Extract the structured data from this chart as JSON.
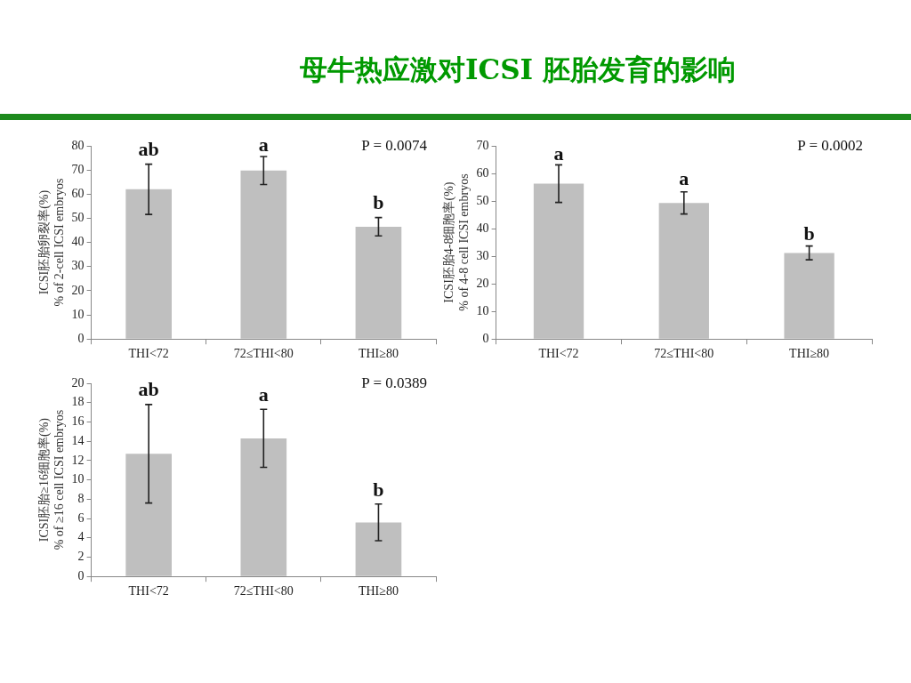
{
  "chart_data": [
    {
      "type": "bar",
      "title": "母牛热应激对ICSI 胚胎发育的影响",
      "ylabel": "ICSI胚胎卵裂率(%)\n% of 2-cell ICSI embryos",
      "categories": [
        "THI<72",
        "72≤THI<80",
        "THI≥80"
      ],
      "values": [
        62,
        69.8,
        46.5
      ],
      "errors": [
        10.4,
        5.8,
        3.8
      ],
      "color": "#bfbfbf",
      "ylim": [
        0,
        80
      ],
      "yticks": [
        0,
        10,
        20,
        30,
        40,
        50,
        60,
        70,
        80
      ],
      "annotations": [
        {
          "text": "ab",
          "x": "THI<72",
          "y": 74
        },
        {
          "text": "a",
          "x": "72≤THI<80",
          "y": 76
        },
        {
          "text": "b",
          "x": "THI≥80",
          "y": 52
        },
        "P = 0.0074"
      ]
    },
    {
      "type": "bar",
      "ylabel": "ICSI胚胎4-8细胞率(%)\n% of 4-8 cell ICSI embryos",
      "categories": [
        "THI<72",
        "72≤THI<80",
        "THI≥80"
      ],
      "values": [
        56.3,
        49.3,
        31.2
      ],
      "errors": [
        6.8,
        4,
        2.5
      ],
      "color": "#bfbfbf",
      "ylim": [
        0,
        70
      ],
      "yticks": [
        0,
        10,
        20,
        30,
        40,
        50,
        60,
        70
      ],
      "annotations": [
        {
          "text": "a",
          "x": "THI<72",
          "y": 63
        },
        {
          "text": "a",
          "x": "72≤THI<80",
          "y": 54
        },
        {
          "text": "b",
          "x": "THI≥80",
          "y": 34
        },
        "P = 0.0002"
      ]
    },
    {
      "type": "bar",
      "ylabel": "ICSI胚胎≥16细胞率(%)\n% of ≥16 cell ICSI embryos",
      "categories": [
        "THI<72",
        "72≤THI<80",
        "THI≥80"
      ],
      "values": [
        12.7,
        14.3,
        5.6
      ],
      "errors": [
        5.1,
        3,
        1.9
      ],
      "color": "#bfbfbf",
      "ylim": [
        0,
        20
      ],
      "yticks": [
        0,
        2,
        4,
        6,
        8,
        10,
        12,
        14,
        16,
        18,
        20
      ],
      "annotations": [
        {
          "text": "ab",
          "x": "THI<72",
          "y": 18.2
        },
        {
          "text": "a",
          "x": "72≤THI<80",
          "y": 17.7
        },
        {
          "text": "b",
          "x": "THI≥80",
          "y": 7.8
        },
        "P = 0.0389"
      ]
    }
  ]
}
